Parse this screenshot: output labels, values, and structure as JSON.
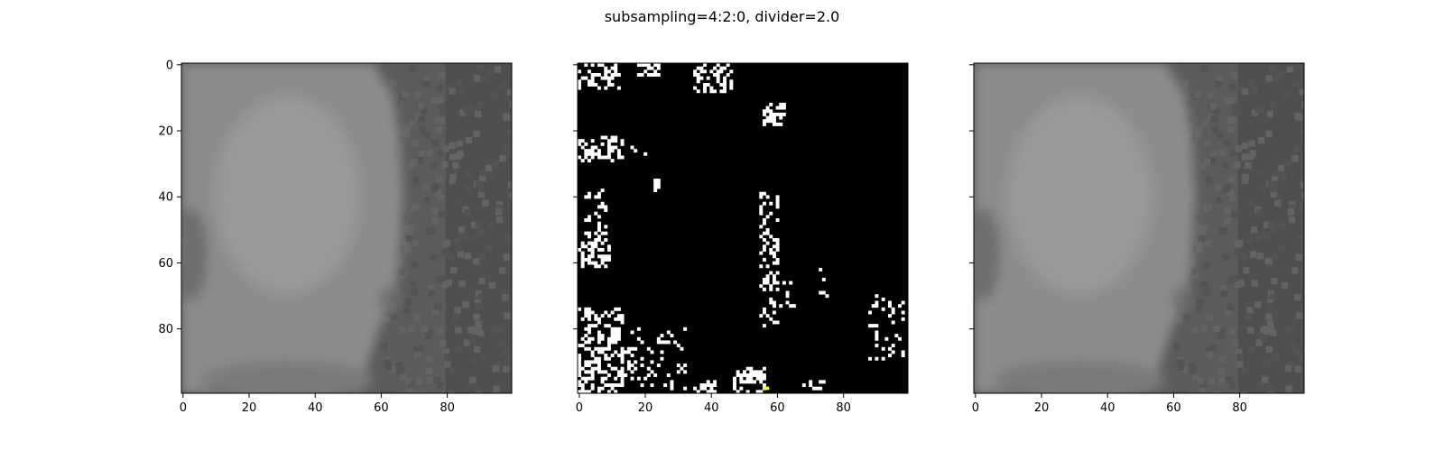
{
  "figure": {
    "title": "subsampling=4:2:0, divider=2.0"
  },
  "chart_data": [
    {
      "type": "heatmap",
      "panel": "original",
      "image_size": [
        100,
        100
      ],
      "colormap": "gray",
      "content": "grayscale photo: light head/shoulder shape centered, darker textured background on right",
      "xticks": [
        0,
        20,
        40,
        60,
        80
      ],
      "yticks": [
        0,
        20,
        40,
        60,
        80
      ],
      "show_ytick_labels": true,
      "tones": {
        "background": "#5b5b5b",
        "background_dark": "#4f4f4f",
        "subject": "#8c8c8c",
        "subject_light": "#999999",
        "subject_shadow": "#6e6e6e",
        "collar": "#7a7a7a"
      }
    },
    {
      "type": "heatmap",
      "panel": "difference",
      "image_size": [
        100,
        100
      ],
      "colormap": "binary-mask",
      "content": "black field with scattered white pixels where the two images differ; one yellow pixel near bottom",
      "xticks": [
        0,
        20,
        40,
        60,
        80
      ],
      "yticks": [
        0,
        20,
        40,
        60,
        80
      ],
      "show_ytick_labels": false,
      "colors": {
        "background": "#000000",
        "marked": "#ffffff",
        "highlight": "#ffff00"
      },
      "clusters": [
        {
          "x": [
            0,
            13
          ],
          "y": [
            0,
            8
          ],
          "density": 0.45
        },
        {
          "x": [
            18,
            25
          ],
          "y": [
            0,
            4
          ],
          "density": 0.35
        },
        {
          "x": [
            35,
            47
          ],
          "y": [
            0,
            9
          ],
          "density": 0.4
        },
        {
          "x": [
            56,
            63
          ],
          "y": [
            12,
            19
          ],
          "density": 0.55
        },
        {
          "x": [
            0,
            14
          ],
          "y": [
            22,
            30
          ],
          "density": 0.45
        },
        {
          "x": [
            16,
            25
          ],
          "y": [
            25,
            28
          ],
          "density": 0.15
        },
        {
          "x": [
            23,
            25
          ],
          "y": [
            35,
            39
          ],
          "density": 0.6
        },
        {
          "x": [
            2,
            9
          ],
          "y": [
            38,
            56
          ],
          "density": 0.25
        },
        {
          "x": [
            0,
            10
          ],
          "y": [
            54,
            62
          ],
          "density": 0.5
        },
        {
          "x": [
            55,
            61
          ],
          "y": [
            39,
            80
          ],
          "density": 0.3
        },
        {
          "x": [
            58,
            66
          ],
          "y": [
            66,
            74
          ],
          "density": 0.2
        },
        {
          "x": [
            73,
            76
          ],
          "y": [
            55,
            72
          ],
          "density": 0.1
        },
        {
          "x": [
            0,
            14
          ],
          "y": [
            74,
            100
          ],
          "density": 0.45
        },
        {
          "x": [
            14,
            33
          ],
          "y": [
            80,
            100
          ],
          "density": 0.12
        },
        {
          "x": [
            47,
            57
          ],
          "y": [
            92,
            100
          ],
          "density": 0.5
        },
        {
          "x": [
            35,
            42
          ],
          "y": [
            96,
            100
          ],
          "density": 0.4
        },
        {
          "x": [
            88,
            100
          ],
          "y": [
            70,
            90
          ],
          "density": 0.12
        },
        {
          "x": [
            68,
            75
          ],
          "y": [
            96,
            100
          ],
          "density": 0.3
        }
      ],
      "highlight_pixel": {
        "x": 56,
        "y": 98
      }
    },
    {
      "type": "heatmap",
      "panel": "reconstructed",
      "image_size": [
        100,
        100
      ],
      "colormap": "gray",
      "content": "grayscale photo visually identical to the original panel",
      "xticks": [
        0,
        20,
        40,
        60,
        80
      ],
      "yticks": [
        0,
        20,
        40,
        60,
        80
      ],
      "show_ytick_labels": false,
      "tones": {
        "background": "#5b5b5b",
        "background_dark": "#4f4f4f",
        "subject": "#8c8c8c",
        "subject_light": "#999999",
        "subject_shadow": "#6e6e6e",
        "collar": "#7a7a7a"
      }
    }
  ]
}
